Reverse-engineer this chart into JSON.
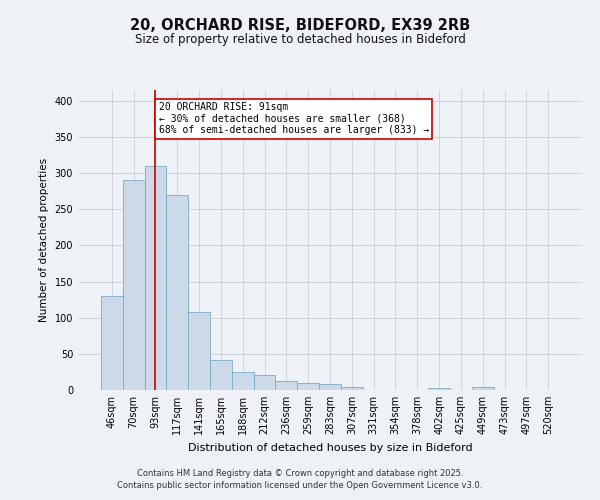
{
  "title": "20, ORCHARD RISE, BIDEFORD, EX39 2RB",
  "subtitle": "Size of property relative to detached houses in Bideford",
  "xlabel": "Distribution of detached houses by size in Bideford",
  "ylabel": "Number of detached properties",
  "bar_labels": [
    "46sqm",
    "70sqm",
    "93sqm",
    "117sqm",
    "141sqm",
    "165sqm",
    "188sqm",
    "212sqm",
    "236sqm",
    "259sqm",
    "283sqm",
    "307sqm",
    "331sqm",
    "354sqm",
    "378sqm",
    "402sqm",
    "425sqm",
    "449sqm",
    "473sqm",
    "497sqm",
    "520sqm"
  ],
  "bar_values": [
    130,
    290,
    310,
    270,
    108,
    42,
    25,
    21,
    12,
    10,
    8,
    4,
    0,
    0,
    0,
    3,
    0,
    4,
    0,
    0,
    0
  ],
  "bar_color": "#ccd9e8",
  "bar_edge_color": "#7aaac8",
  "background_color": "#eef2f7",
  "grid_color": "#c8cdd8",
  "vline_x": 2.0,
  "vline_color": "#cc0000",
  "annotation_text": "20 ORCHARD RISE: 91sqm\n← 30% of detached houses are smaller (368)\n68% of semi-detached houses are larger (833) →",
  "annotation_box_facecolor": "#ffffff",
  "annotation_box_edgecolor": "#cc0000",
  "ylim": [
    0,
    415
  ],
  "yticks": [
    0,
    50,
    100,
    150,
    200,
    250,
    300,
    350,
    400
  ],
  "footnote1": "Contains HM Land Registry data © Crown copyright and database right 2025.",
  "footnote2": "Contains public sector information licensed under the Open Government Licence v3.0."
}
